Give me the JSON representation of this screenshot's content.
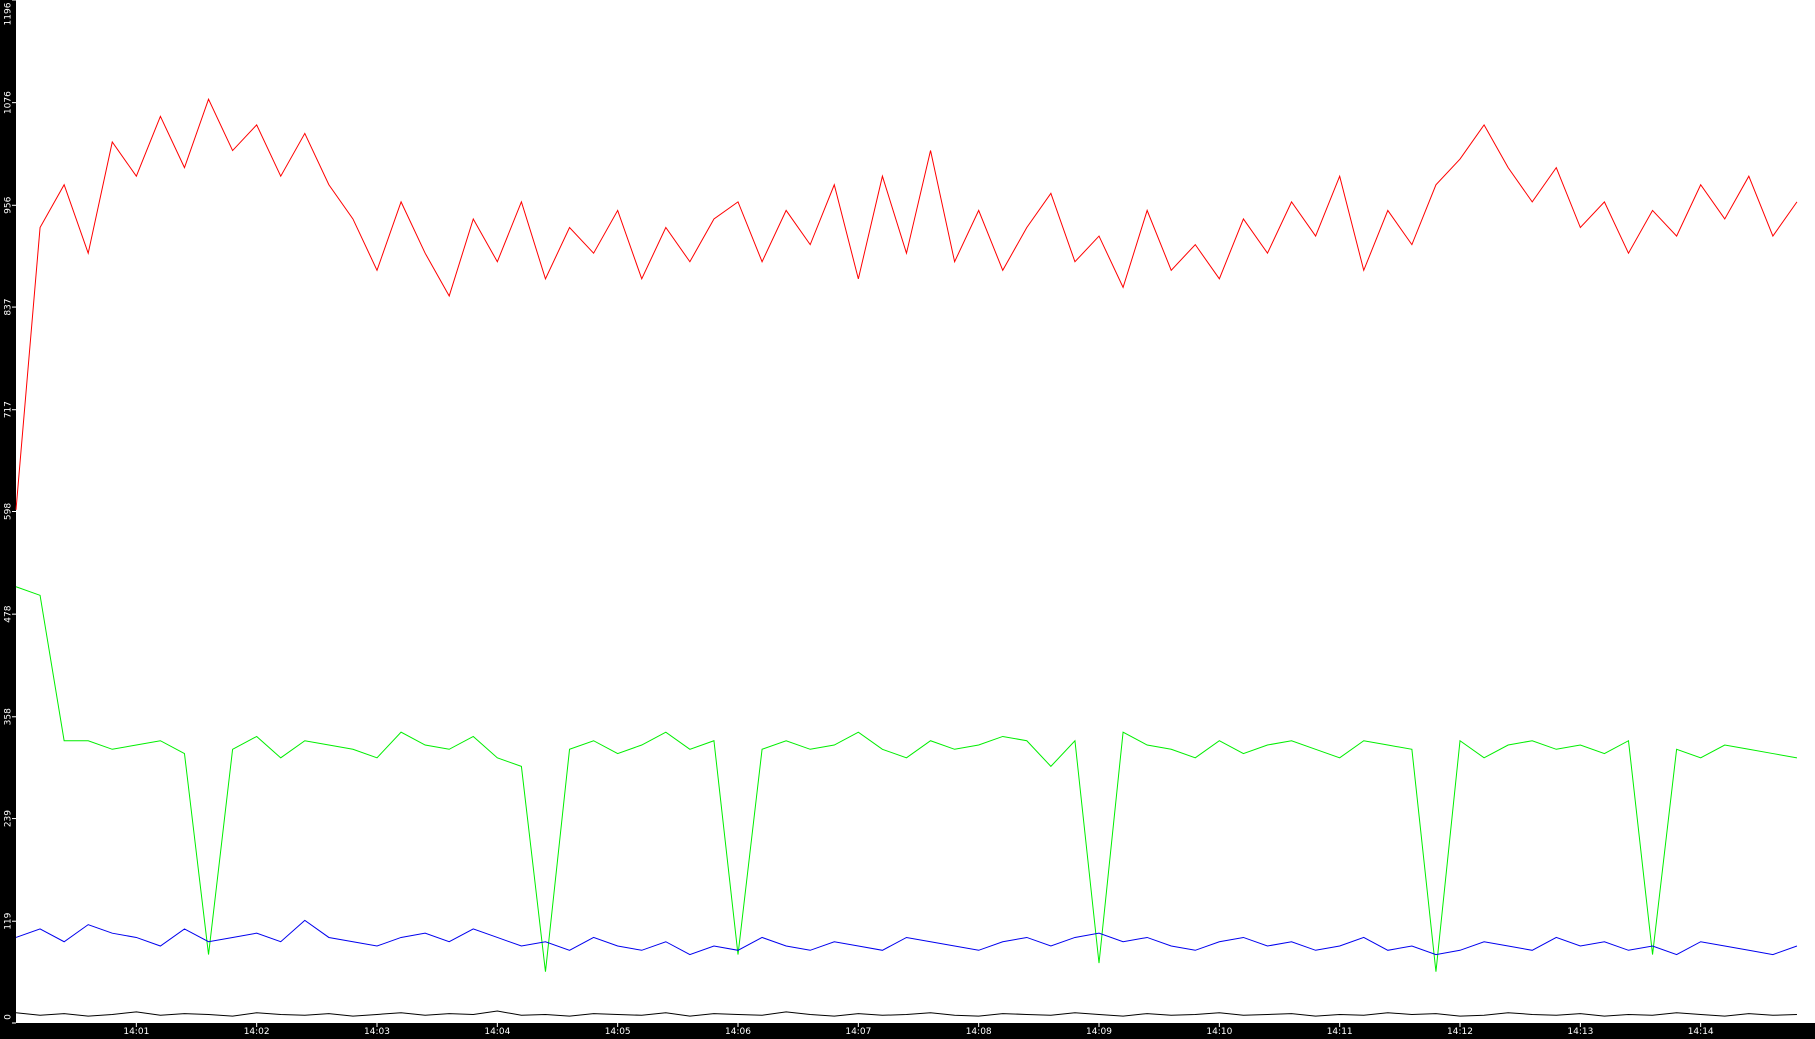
{
  "chart_data": {
    "type": "line",
    "x": [
      0,
      0.2,
      0.4,
      0.6,
      0.8,
      1,
      1.2,
      1.4,
      1.6,
      1.8,
      2,
      2.2,
      2.4,
      2.6,
      2.8,
      3,
      3.2,
      3.4,
      3.6,
      3.8,
      4,
      4.2,
      4.4,
      4.6,
      4.8,
      5,
      5.2,
      5.4,
      5.6,
      5.8,
      6,
      6.2,
      6.4,
      6.6,
      6.8,
      7,
      7.2,
      7.4,
      7.6,
      7.8,
      8,
      8.2,
      8.4,
      8.6,
      8.8,
      9,
      9.2,
      9.4,
      9.6,
      9.8,
      10,
      10.2,
      10.4,
      10.6,
      10.8,
      11,
      11.2,
      11.4,
      11.6,
      11.8,
      12,
      12.2,
      12.4,
      12.6,
      12.8,
      13,
      13.2,
      13.4,
      13.6,
      13.8,
      14,
      14.2,
      14.4,
      14.6,
      14.8
    ],
    "series": [
      {
        "color": "#ff0000",
        "values": [
          600,
          930,
          980,
          900,
          1030,
          990,
          1060,
          1000,
          1080,
          1020,
          1050,
          990,
          1040,
          980,
          940,
          880,
          960,
          900,
          850,
          940,
          890,
          960,
          870,
          930,
          900,
          950,
          870,
          930,
          890,
          940,
          960,
          890,
          950,
          910,
          980,
          870,
          990,
          900,
          1020,
          890,
          950,
          880,
          930,
          970,
          890,
          920,
          860,
          950,
          880,
          910,
          870,
          940,
          900,
          960,
          920,
          990,
          880,
          950,
          910,
          980,
          1010,
          1050,
          1000,
          960,
          1000,
          930,
          960,
          900,
          950,
          920,
          980,
          940,
          990,
          920,
          960
        ]
      },
      {
        "color": "#00ee00",
        "values": [
          510,
          500,
          330,
          330,
          320,
          325,
          330,
          315,
          80,
          320,
          335,
          310,
          330,
          325,
          320,
          310,
          340,
          325,
          320,
          335,
          310,
          300,
          60,
          320,
          330,
          315,
          325,
          340,
          320,
          330,
          80,
          320,
          330,
          320,
          325,
          340,
          320,
          310,
          330,
          320,
          325,
          335,
          330,
          300,
          330,
          70,
          340,
          325,
          320,
          310,
          330,
          315,
          325,
          330,
          320,
          310,
          330,
          325,
          320,
          60,
          330,
          310,
          325,
          330,
          320,
          325,
          315,
          330,
          80,
          320,
          310,
          325,
          320,
          315,
          310
        ]
      },
      {
        "color": "#0000ee",
        "values": [
          100,
          110,
          95,
          115,
          105,
          100,
          90,
          110,
          95,
          100,
          105,
          95,
          120,
          100,
          95,
          90,
          100,
          105,
          95,
          110,
          100,
          90,
          95,
          85,
          100,
          90,
          85,
          95,
          80,
          90,
          85,
          100,
          90,
          85,
          95,
          90,
          85,
          100,
          95,
          90,
          85,
          95,
          100,
          90,
          100,
          105,
          95,
          100,
          90,
          85,
          95,
          100,
          90,
          95,
          85,
          90,
          100,
          85,
          90,
          80,
          85,
          95,
          90,
          85,
          100,
          90,
          95,
          85,
          90,
          80,
          95,
          90,
          85,
          80,
          90
        ]
      },
      {
        "color": "#000000",
        "values": [
          12,
          9,
          11,
          8,
          10,
          13,
          9,
          11,
          10,
          8,
          12,
          10,
          9,
          11,
          8,
          10,
          12,
          9,
          11,
          10,
          14,
          9,
          10,
          8,
          11,
          10,
          9,
          12,
          8,
          11,
          10,
          9,
          13,
          10,
          8,
          11,
          9,
          10,
          12,
          9,
          8,
          11,
          10,
          9,
          12,
          10,
          8,
          11,
          9,
          10,
          12,
          9,
          10,
          11,
          8,
          10,
          9,
          12,
          10,
          11,
          8,
          9,
          12,
          10,
          9,
          11,
          8,
          10,
          9,
          12,
          10,
          8,
          11,
          9,
          10
        ]
      }
    ],
    "xlim": [
      0,
      14.95
    ],
    "xticks": [
      {
        "value": 1,
        "label": "14:01"
      },
      {
        "value": 2,
        "label": "14:02"
      },
      {
        "value": 3,
        "label": "14:03"
      },
      {
        "value": 4,
        "label": "14:04"
      },
      {
        "value": 5,
        "label": "14:05"
      },
      {
        "value": 6,
        "label": "14:06"
      },
      {
        "value": 7,
        "label": "14:07"
      },
      {
        "value": 8,
        "label": "14:08"
      },
      {
        "value": 9,
        "label": "14:09"
      },
      {
        "value": 10,
        "label": "14:10"
      },
      {
        "value": 11,
        "label": "14:11"
      },
      {
        "value": 12,
        "label": "14:12"
      },
      {
        "value": 13,
        "label": "14:13"
      },
      {
        "value": 14,
        "label": "14:14"
      }
    ],
    "ylim": [
      0,
      1196
    ],
    "yticks": [
      0,
      119,
      239,
      358,
      478,
      598,
      717,
      837,
      956,
      1076,
      1196
    ]
  }
}
